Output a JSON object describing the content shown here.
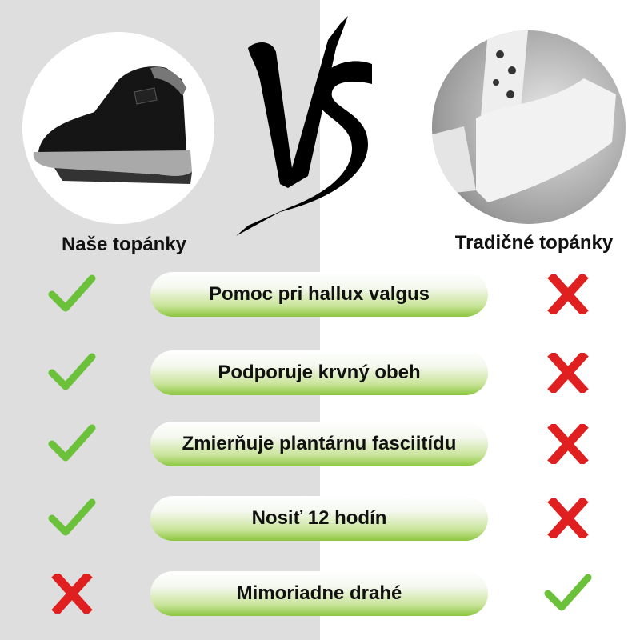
{
  "left": {
    "caption": "Naše topánky",
    "image": "black-winter-sneaker"
  },
  "right": {
    "caption": "Tradičné topánky",
    "image": "white-sneakers-photo"
  },
  "vs_logo": "VS",
  "colors": {
    "check": "#6cc13a",
    "cross": "#e02020",
    "pill_green": "#8cc63f",
    "left_bg": "#dedede"
  },
  "rows": [
    {
      "label": "Pomoc pri hallux valgus",
      "ours": "check",
      "traditional": "cross"
    },
    {
      "label": "Podporuje krvný obeh",
      "ours": "check",
      "traditional": "cross"
    },
    {
      "label": "Zmierňuje plantárnu fasciitídu",
      "ours": "check",
      "traditional": "cross"
    },
    {
      "label": "Nosiť 12 hodín",
      "ours": "check",
      "traditional": "cross"
    },
    {
      "label": "Mimoriadne drahé",
      "ours": "cross",
      "traditional": "check"
    }
  ]
}
